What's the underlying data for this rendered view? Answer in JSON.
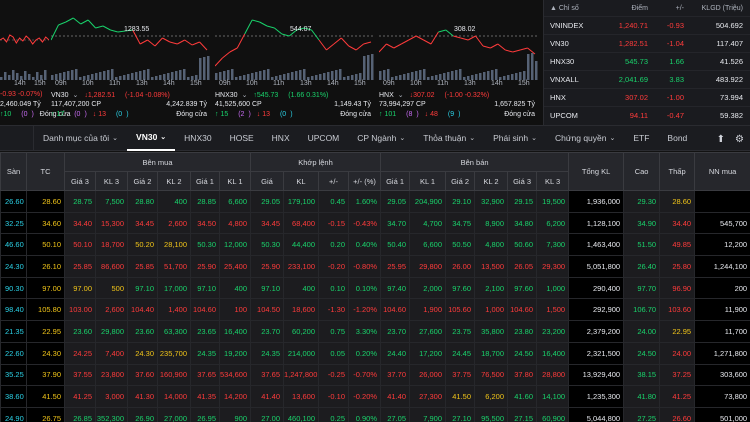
{
  "charts": [
    {
      "name": "",
      "times": [
        "14h",
        "15h"
      ],
      "change": "-0.93 -0.07%)",
      "volume": "2,460.049 Tỷ",
      "up": "10",
      "ref": "0",
      "status": "Đóng cửa",
      "line_label": "",
      "prices": [
        60,
        58,
        62,
        55,
        57,
        63,
        58,
        61,
        56,
        59,
        64,
        60,
        58,
        62,
        57,
        60
      ],
      "colors": [
        "#19d26b",
        "#19d26b",
        "#ff3b3b",
        "#ff3b3b"
      ]
    },
    {
      "name": "VN30",
      "times": [
        "09h",
        "10h",
        "11h",
        "13h",
        "14h",
        "15h"
      ],
      "change": "1,282.51",
      "change2": "-1.04 -0.08%)",
      "qty": "117,407,200 CP",
      "volume": "4,242.839 Tỷ",
      "up": "17",
      "ref": "0",
      "down": "13",
      "ceil": "0",
      "status": "Đóng cửa",
      "line_label": "1283.55",
      "prices": [
        40,
        25,
        22,
        18,
        24,
        20,
        28,
        26,
        30,
        32,
        31,
        30,
        44,
        40,
        46,
        38,
        42,
        44,
        40,
        45,
        42,
        50
      ],
      "colors": []
    },
    {
      "name": "HNX30",
      "times": [
        "09h",
        "10h",
        "11h",
        "13h",
        "14h",
        "15h"
      ],
      "change": "545.73",
      "change2": "1.66 0.31%)",
      "qty": "41,525,600 CP",
      "volume": "1,149.43 Tỷ",
      "up": "15",
      "ref": "2",
      "down": "13",
      "ceil": "0",
      "status": "Đóng cửa",
      "line_label": "544.07",
      "prices": [
        66,
        58,
        52,
        48,
        34,
        20,
        22,
        26,
        28,
        34,
        36,
        30,
        28,
        30,
        40,
        50,
        44,
        38,
        46,
        50,
        44,
        42
      ],
      "colors": []
    },
    {
      "name": "HNX",
      "times": [
        "09h",
        "10h",
        "11h",
        "13h",
        "14h",
        "15h"
      ],
      "change": "307.02",
      "change2": "-1.00 -0.32%)",
      "qty": "73,994,297 CP",
      "volume": "1,657.825 Tỷ",
      "up": "101",
      "ref": "8",
      "down": "48",
      "ceil": "9",
      "status": "Đóng cửa",
      "line_label": "308.02",
      "prices": [
        52,
        44,
        48,
        44,
        40,
        36,
        40,
        44,
        32,
        30,
        36,
        38,
        40,
        36,
        46,
        48,
        44,
        50,
        52,
        50,
        48,
        54
      ],
      "colors": []
    }
  ],
  "indices": {
    "headers": [
      "Chỉ số",
      "Điểm",
      "+/-",
      "KLGD (Triệu)"
    ],
    "rows": [
      {
        "name": "VNINDEX",
        "point": "1,240.71",
        "change": "-0.93",
        "vol": "504.692",
        "color": "#ff3b3b"
      },
      {
        "name": "VN30",
        "point": "1,282.51",
        "change": "-1.04",
        "vol": "117.407",
        "color": "#ff3b3b"
      },
      {
        "name": "HNX30",
        "point": "545.73",
        "change": "1.66",
        "vol": "41.526",
        "color": "#19d26b"
      },
      {
        "name": "VNXALL",
        "point": "2,041.69",
        "change": "3.83",
        "vol": "483.922",
        "color": "#19d26b"
      },
      {
        "name": "HNX",
        "point": "307.02",
        "change": "-1.00",
        "vol": "73.994",
        "color": "#ff3b3b"
      },
      {
        "name": "UPCOM",
        "point": "94.11",
        "change": "-0.47",
        "vol": "59.382",
        "color": "#ff3b3b"
      }
    ]
  },
  "tabs": [
    {
      "label": "Danh mục của tôi",
      "chev": true
    },
    {
      "label": "VN30",
      "chev": true,
      "active": true
    },
    {
      "label": "HNX30"
    },
    {
      "label": "HOSE"
    },
    {
      "label": "HNX"
    },
    {
      "label": "UPCOM"
    },
    {
      "label": "CP Ngành",
      "chev": true
    },
    {
      "label": "Thỏa thuận",
      "chev": true
    },
    {
      "label": "Phái sinh",
      "chev": true
    },
    {
      "label": "Chứng quyền",
      "chev": true
    },
    {
      "label": "ETF"
    },
    {
      "label": "Bond"
    }
  ],
  "table": {
    "groups": {
      "san": "Sàn",
      "tc": "TC",
      "buy": "Bên mua",
      "match": "Khớp lệnh",
      "sell": "Bên bán",
      "total": "Tổng KL",
      "high": "Cao",
      "low": "Thấp",
      "nn": "NN mua"
    },
    "sub": [
      "Giá 3",
      "KL 3",
      "Giá 2",
      "KL 2",
      "Giá 1",
      "KL 1",
      "Giá",
      "KL",
      "+/-",
      "+/- (%)",
      "Giá 1",
      "KL 1",
      "Giá 2",
      "KL 2",
      "Giá 3",
      "KL 3"
    ],
    "rows": [
      {
        "v": [
          "26.60",
          "28.60",
          "28.75",
          "7,500",
          "28.80",
          "400",
          "28.85",
          "6,600",
          "29.05",
          "179,100",
          "0.45",
          "1.60%",
          "29.05",
          "204,900",
          "29.10",
          "32,900",
          "29.15",
          "19,500",
          "1,936,000",
          "29.30",
          "28.60",
          ""
        ],
        "c": [
          "c",
          "y",
          "g",
          "g",
          "g",
          "g",
          "g",
          "g",
          "g",
          "g",
          "g",
          "g",
          "g",
          "g",
          "g",
          "g",
          "g",
          "g",
          "w",
          "g",
          "y",
          "w"
        ]
      },
      {
        "v": [
          "32.25",
          "34.60",
          "34.40",
          "15,300",
          "34.45",
          "2,600",
          "34.50",
          "4,800",
          "34.45",
          "68,400",
          "-0.15",
          "-0.43%",
          "34.70",
          "4,700",
          "34.75",
          "8,900",
          "34.80",
          "6,200",
          "1,128,100",
          "34.90",
          "34.40",
          "545,700"
        ],
        "c": [
          "c",
          "y",
          "r",
          "r",
          "r",
          "r",
          "r",
          "r",
          "r",
          "r",
          "r",
          "r",
          "g",
          "g",
          "g",
          "g",
          "g",
          "g",
          "w",
          "g",
          "r",
          "w"
        ]
      },
      {
        "v": [
          "46.60",
          "50.10",
          "50.10",
          "18,700",
          "50.20",
          "28,100",
          "50.30",
          "12,000",
          "50.30",
          "44,400",
          "0.20",
          "0.40%",
          "50.40",
          "6,600",
          "50.50",
          "4,800",
          "50.60",
          "7,300",
          "1,463,400",
          "51.50",
          "49.85",
          "12,200"
        ],
        "c": [
          "c",
          "y",
          "r",
          "r",
          "y",
          "y",
          "g",
          "g",
          "g",
          "g",
          "g",
          "g",
          "g",
          "g",
          "g",
          "g",
          "g",
          "g",
          "w",
          "g",
          "r",
          "w"
        ]
      },
      {
        "v": [
          "24.30",
          "26.10",
          "25.85",
          "86,600",
          "25.85",
          "51,700",
          "25.90",
          "25,400",
          "25.90",
          "233,100",
          "-0.20",
          "-0.80%",
          "25.95",
          "29,800",
          "26.00",
          "13,500",
          "26.05",
          "29,300",
          "5,051,800",
          "26.40",
          "25.80",
          "1,244,100"
        ],
        "c": [
          "c",
          "y",
          "r",
          "r",
          "r",
          "r",
          "r",
          "r",
          "r",
          "r",
          "r",
          "r",
          "r",
          "r",
          "r",
          "r",
          "r",
          "r",
          "w",
          "g",
          "r",
          "w"
        ]
      },
      {
        "v": [
          "90.30",
          "97.00",
          "97.00",
          "500",
          "97.10",
          "17,000",
          "97.10",
          "400",
          "97.10",
          "400",
          "0.10",
          "0.10%",
          "97.40",
          "2,000",
          "97.60",
          "2,100",
          "97.60",
          "1,000",
          "290,400",
          "97.70",
          "96.90",
          "200"
        ],
        "c": [
          "c",
          "y",
          "y",
          "y",
          "g",
          "g",
          "g",
          "g",
          "g",
          "g",
          "g",
          "g",
          "g",
          "g",
          "g",
          "g",
          "g",
          "g",
          "w",
          "g",
          "r",
          "w"
        ]
      },
      {
        "v": [
          "98.40",
          "105.80",
          "103.00",
          "2,600",
          "104.40",
          "1,400",
          "104.60",
          "100",
          "104.50",
          "18,600",
          "-1.30",
          "-1.20%",
          "104.60",
          "1,900",
          "105.60",
          "1,000",
          "104.60",
          "1,500",
          "292,900",
          "106.70",
          "103.60",
          "11,900"
        ],
        "c": [
          "c",
          "y",
          "r",
          "r",
          "r",
          "r",
          "r",
          "r",
          "r",
          "r",
          "r",
          "r",
          "r",
          "r",
          "r",
          "r",
          "r",
          "r",
          "w",
          "g",
          "r",
          "w"
        ]
      },
      {
        "v": [
          "21.35",
          "22.95",
          "23.60",
          "29,800",
          "23.60",
          "63,300",
          "23.65",
          "16,400",
          "23.70",
          "60,200",
          "0.75",
          "3.30%",
          "23.70",
          "27,600",
          "23.75",
          "35,800",
          "23.80",
          "23,200",
          "2,379,200",
          "24.00",
          "22.95",
          "11,700"
        ],
        "c": [
          "c",
          "y",
          "g",
          "g",
          "g",
          "g",
          "g",
          "g",
          "g",
          "g",
          "g",
          "g",
          "g",
          "g",
          "g",
          "g",
          "g",
          "g",
          "w",
          "g",
          "y",
          "w"
        ]
      },
      {
        "v": [
          "22.60",
          "24.30",
          "24.25",
          "7,400",
          "24.30",
          "235,700",
          "24.35",
          "19,200",
          "24.35",
          "214,000",
          "0.05",
          "0.20%",
          "24.40",
          "17,200",
          "24.45",
          "18,700",
          "24.50",
          "16,400",
          "2,321,500",
          "24.50",
          "24.00",
          "1,271,800"
        ],
        "c": [
          "c",
          "y",
          "r",
          "r",
          "y",
          "y",
          "g",
          "g",
          "g",
          "g",
          "g",
          "g",
          "g",
          "g",
          "g",
          "g",
          "g",
          "g",
          "w",
          "g",
          "r",
          "w"
        ]
      },
      {
        "v": [
          "35.25",
          "37.90",
          "37.55",
          "23,800",
          "37.60",
          "160,900",
          "37.65",
          "534,600",
          "37.65",
          "1,247,800",
          "-0.25",
          "-0.70%",
          "37.70",
          "26,000",
          "37.75",
          "76,500",
          "37.80",
          "28,800",
          "13,929,400",
          "38.15",
          "37.25",
          "303,600"
        ],
        "c": [
          "c",
          "y",
          "r",
          "r",
          "r",
          "r",
          "r",
          "r",
          "r",
          "r",
          "r",
          "r",
          "r",
          "r",
          "r",
          "r",
          "r",
          "r",
          "w",
          "g",
          "r",
          "w"
        ]
      },
      {
        "v": [
          "38.60",
          "41.50",
          "41.25",
          "3,000",
          "41.30",
          "14,000",
          "41.35",
          "14,200",
          "41.40",
          "13,600",
          "-0.10",
          "-0.20%",
          "41.40",
          "27,300",
          "41.50",
          "6,200",
          "41.60",
          "14,100",
          "1,235,300",
          "41.80",
          "41.25",
          "73,800"
        ],
        "c": [
          "c",
          "y",
          "r",
          "r",
          "r",
          "r",
          "r",
          "r",
          "r",
          "r",
          "r",
          "r",
          "r",
          "r",
          "y",
          "y",
          "g",
          "g",
          "w",
          "g",
          "r",
          "w"
        ]
      },
      {
        "v": [
          "24.90",
          "26.75",
          "26.85",
          "352,300",
          "26.90",
          "27,000",
          "26.95",
          "900",
          "27.00",
          "460,100",
          "0.25",
          "0.90%",
          "27.05",
          "7,900",
          "27.10",
          "95,500",
          "27.15",
          "60,900",
          "5,044,800",
          "27.25",
          "26.60",
          "501,000"
        ],
        "c": [
          "c",
          "y",
          "g",
          "g",
          "g",
          "g",
          "g",
          "g",
          "g",
          "g",
          "g",
          "g",
          "g",
          "g",
          "g",
          "g",
          "g",
          "g",
          "w",
          "g",
          "r",
          "w"
        ]
      }
    ]
  },
  "colors": {
    "g": "#19d26b",
    "r": "#ff3b3b",
    "y": "#f0c419",
    "c": "#2bd1e6",
    "w": "#e7e9ee"
  }
}
